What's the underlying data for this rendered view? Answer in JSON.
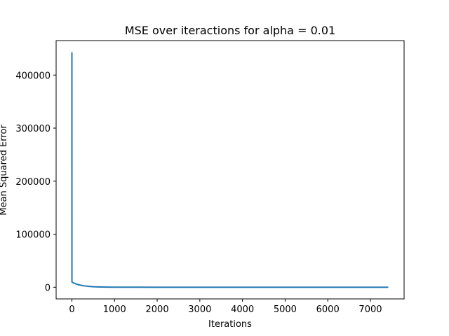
{
  "chart_data": {
    "type": "line",
    "title": "MSE over iteractions for alpha = 0.01",
    "xlabel": "Iterations",
    "ylabel": "Mean Squared Error",
    "xlim": [
      -370,
      7790
    ],
    "ylim": [
      -22000,
      465000
    ],
    "xticks": [
      0,
      1000,
      2000,
      3000,
      4000,
      5000,
      6000,
      7000
    ],
    "yticks": [
      0,
      100000,
      200000,
      300000,
      400000
    ],
    "grid": false,
    "line_color": "#1f77b4",
    "series": [
      {
        "x": [
          0,
          1,
          2,
          5,
          10,
          25,
          50,
          75,
          100,
          150,
          200,
          250,
          300,
          400,
          500,
          600,
          700,
          800,
          1000,
          1200,
          1500,
          2000,
          3000,
          4000,
          5000,
          6000,
          7000,
          7420
        ],
        "y": [
          443000,
          10000,
          9800,
          9600,
          9300,
          8600,
          7700,
          6900,
          6100,
          4900,
          3900,
          3100,
          2500,
          1600,
          1000,
          650,
          420,
          280,
          140,
          70,
          40,
          20,
          10,
          5,
          3,
          2,
          1,
          1
        ]
      }
    ]
  }
}
